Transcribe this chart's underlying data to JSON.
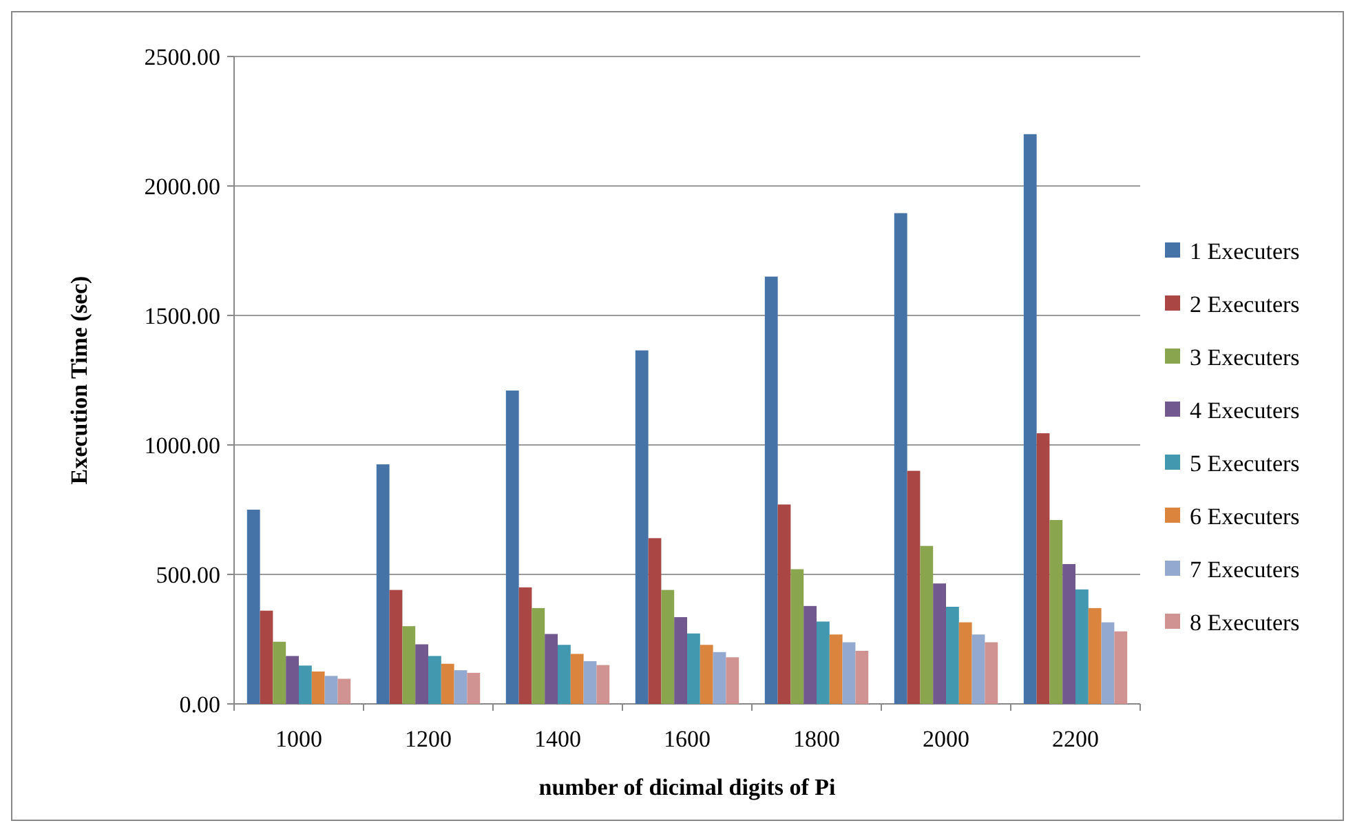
{
  "chart_data": {
    "type": "bar",
    "xlabel": "number of dicimal digits of Pi",
    "ylabel": "Execution Time (sec)",
    "categories": [
      "1000",
      "1200",
      "1400",
      "1600",
      "1800",
      "2000",
      "2200"
    ],
    "series": [
      {
        "name": "1 Executers",
        "color": "#4572a7",
        "values": [
          750,
          925,
          1210,
          1365,
          1650,
          1895,
          2200
        ]
      },
      {
        "name": "2 Executers",
        "color": "#aa4643",
        "values": [
          360,
          440,
          450,
          640,
          770,
          900,
          1045
        ]
      },
      {
        "name": "3 Executers",
        "color": "#89a54e",
        "values": [
          240,
          300,
          370,
          440,
          520,
          610,
          710
        ]
      },
      {
        "name": "4 Executers",
        "color": "#71588f",
        "values": [
          185,
          230,
          270,
          335,
          378,
          465,
          540
        ]
      },
      {
        "name": "5 Executers",
        "color": "#4198af",
        "values": [
          148,
          185,
          228,
          272,
          318,
          375,
          442
        ]
      },
      {
        "name": "6 Executers",
        "color": "#db843d",
        "values": [
          125,
          155,
          193,
          228,
          268,
          315,
          370
        ]
      },
      {
        "name": "7 Executers",
        "color": "#93a9cf",
        "values": [
          108,
          130,
          165,
          200,
          238,
          268,
          315
        ]
      },
      {
        "name": "8 Executers",
        "color": "#d19392",
        "values": [
          97,
          120,
          150,
          180,
          205,
          238,
          280
        ]
      }
    ],
    "ylim": [
      0,
      2500
    ],
    "yticks": [
      {
        "value": 0,
        "label": "0.00"
      },
      {
        "value": 500,
        "label": "500.00"
      },
      {
        "value": 1000,
        "label": "1000.00"
      },
      {
        "value": 1500,
        "label": "1500.00"
      },
      {
        "value": 2000,
        "label": "2000.00"
      },
      {
        "value": 2500,
        "label": "2500.00"
      }
    ],
    "grid": "y",
    "legend": "right"
  }
}
